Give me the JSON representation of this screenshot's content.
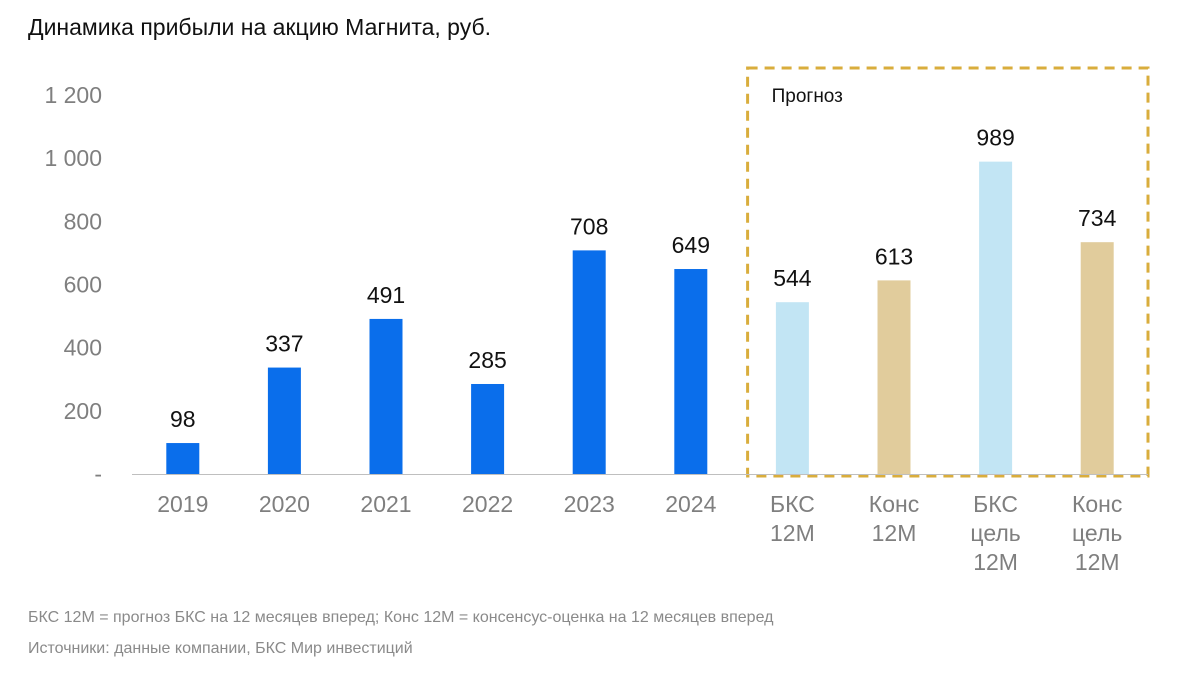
{
  "title": "Динамика прибыли на акцию Магнита, руб.",
  "colors": {
    "actual": "#0a6eeb",
    "bcs": "#c2e5f4",
    "consensus": "#e1cc9c",
    "forecast_border": "#d9ad3c",
    "axis": "#bfbfbf"
  },
  "chart_data": {
    "type": "bar",
    "title": "Динамика прибыли на акцию Магнита, руб.",
    "xlabel": "",
    "ylabel": "",
    "ylim": [
      0,
      1200
    ],
    "yticks": [
      0,
      200,
      400,
      600,
      800,
      1000,
      1200
    ],
    "ytick_labels": [
      "-",
      "200",
      "400",
      "600",
      "800",
      "1 000",
      "1 200"
    ],
    "grid": false,
    "categories": [
      [
        "2019"
      ],
      [
        "2020"
      ],
      [
        "2021"
      ],
      [
        "2022"
      ],
      [
        "2023"
      ],
      [
        "2024"
      ],
      [
        "БКС",
        "12М"
      ],
      [
        "Конс",
        "12М"
      ],
      [
        "БКС",
        "цель",
        "12М"
      ],
      [
        "Конс",
        "цель",
        "12М"
      ]
    ],
    "values": [
      98,
      337,
      491,
      285,
      708,
      649,
      544,
      613,
      989,
      734
    ],
    "bar_kinds": [
      "actual",
      "actual",
      "actual",
      "actual",
      "actual",
      "actual",
      "bcs",
      "consensus",
      "bcs",
      "consensus"
    ],
    "forecast_box": {
      "label": "Прогноз",
      "from_index": 6,
      "to_index": 9
    }
  },
  "footnotes": {
    "line1": "БКС 12М = прогноз БКС на 12 месяцев вперед; Конс 12М = консенсус-оценка на 12 месяцев вперед",
    "line2": "Источники: данные компании, БКС Мир инвестиций"
  }
}
